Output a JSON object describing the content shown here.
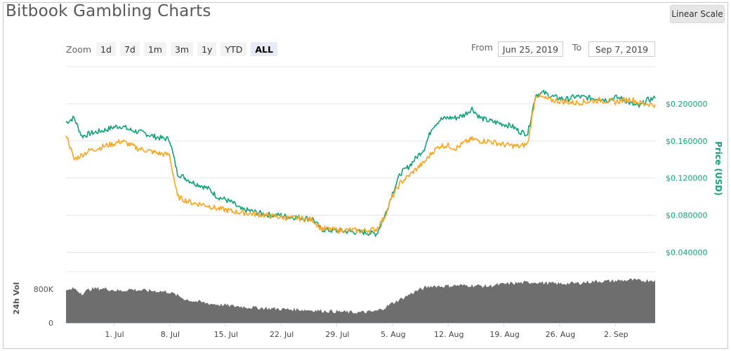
{
  "title": "Bitbook Gambling Charts",
  "scale_button": "Linear Scale",
  "zoom": {
    "label": "Zoom",
    "buttons": [
      "1d",
      "7d",
      "1m",
      "3m",
      "1y",
      "YTD",
      "ALL"
    ],
    "active": "ALL"
  },
  "range": {
    "from_label": "From",
    "from_value": "Jun 25, 2019",
    "to_label": "To",
    "to_value": "Sep 7, 2019"
  },
  "colors": {
    "green": "#13a07a",
    "orange": "#f5a623",
    "volume": "#6e6e6e",
    "grid": "#e6e6e6",
    "axis_label": "#13a07a"
  },
  "chart_data": {
    "type": "line",
    "ylabel": "Price (USD)",
    "y_ticks": [
      "$0.040000",
      "$0.080000",
      "$0.120000",
      "$0.160000",
      "$0.200000"
    ],
    "ylim": [
      0.02,
      0.24
    ],
    "x_ticks": [
      "1. Jul",
      "8. Jul",
      "15. Jul",
      "22. Jul",
      "29. Jul",
      "5. Aug",
      "12. Aug",
      "19. Aug",
      "26. Aug",
      "2. Sep"
    ],
    "x_tick_days": [
      6,
      13,
      20,
      27,
      34,
      41,
      48,
      55,
      62,
      69
    ],
    "x_days": [
      0,
      1,
      2,
      3,
      4,
      5,
      6,
      7,
      8,
      9,
      10,
      11,
      12,
      13,
      14,
      15,
      16,
      17,
      18,
      19,
      20,
      21,
      22,
      23,
      24,
      25,
      26,
      27,
      28,
      29,
      30,
      31,
      32,
      33,
      34,
      35,
      36,
      37,
      38,
      39,
      40,
      41,
      42,
      43,
      44,
      45,
      46,
      47,
      48,
      49,
      50,
      51,
      52,
      53,
      54,
      55,
      56,
      57,
      58,
      59,
      60,
      61,
      62,
      63,
      64,
      65,
      66,
      67,
      68,
      69,
      70,
      71,
      72,
      73,
      74
    ],
    "series": [
      {
        "name": "",
        "color": "green",
        "values": [
          0.18,
          0.185,
          0.165,
          0.168,
          0.17,
          0.172,
          0.175,
          0.176,
          0.172,
          0.17,
          0.168,
          0.165,
          0.163,
          0.162,
          0.125,
          0.12,
          0.115,
          0.112,
          0.108,
          0.1,
          0.097,
          0.093,
          0.086,
          0.085,
          0.083,
          0.081,
          0.08,
          0.08,
          0.078,
          0.078,
          0.077,
          0.076,
          0.065,
          0.064,
          0.063,
          0.063,
          0.062,
          0.062,
          0.061,
          0.06,
          0.078,
          0.104,
          0.125,
          0.132,
          0.142,
          0.152,
          0.175,
          0.183,
          0.185,
          0.185,
          0.188,
          0.195,
          0.185,
          0.182,
          0.18,
          0.178,
          0.176,
          0.17,
          0.168,
          0.21,
          0.212,
          0.208,
          0.206,
          0.205,
          0.208,
          0.207,
          0.206,
          0.206,
          0.204,
          0.207,
          0.205,
          0.2,
          0.197,
          0.204,
          0.206
        ]
      },
      {
        "name": "",
        "color": "orange",
        "values": [
          0.168,
          0.14,
          0.145,
          0.15,
          0.152,
          0.155,
          0.157,
          0.16,
          0.156,
          0.152,
          0.15,
          0.148,
          0.146,
          0.145,
          0.1,
          0.096,
          0.093,
          0.092,
          0.09,
          0.087,
          0.086,
          0.084,
          0.083,
          0.082,
          0.081,
          0.08,
          0.079,
          0.078,
          0.077,
          0.077,
          0.076,
          0.075,
          0.066,
          0.065,
          0.064,
          0.064,
          0.064,
          0.063,
          0.064,
          0.065,
          0.078,
          0.1,
          0.115,
          0.122,
          0.13,
          0.137,
          0.148,
          0.155,
          0.155,
          0.152,
          0.158,
          0.162,
          0.16,
          0.16,
          0.158,
          0.156,
          0.155,
          0.154,
          0.157,
          0.21,
          0.206,
          0.204,
          0.203,
          0.202,
          0.201,
          0.202,
          0.203,
          0.204,
          0.203,
          0.202,
          0.204,
          0.205,
          0.201,
          0.2,
          0.199
        ]
      }
    ],
    "volume": {
      "ylabel": "24h Vol",
      "y_ticks": [
        "0",
        "800K"
      ],
      "ylim": [
        0,
        1200000
      ],
      "values": [
        750000,
        820000,
        700000,
        800000,
        820000,
        810000,
        780000,
        760000,
        800000,
        780000,
        770000,
        760000,
        750000,
        730000,
        650000,
        560000,
        520000,
        490000,
        460000,
        440000,
        420000,
        400000,
        390000,
        370000,
        360000,
        350000,
        340000,
        330000,
        320000,
        320000,
        310000,
        300000,
        290000,
        280000,
        270000,
        260000,
        250000,
        250000,
        260000,
        280000,
        360000,
        470000,
        560000,
        660000,
        760000,
        830000,
        880000,
        870000,
        880000,
        890000,
        890000,
        890000,
        880000,
        870000,
        900000,
        920000,
        940000,
        950000,
        960000,
        970000,
        950000,
        940000,
        930000,
        940000,
        940000,
        960000,
        980000,
        990000,
        990000,
        1000000,
        1010000,
        1020000,
        1000000,
        1010000,
        1020000
      ]
    }
  }
}
